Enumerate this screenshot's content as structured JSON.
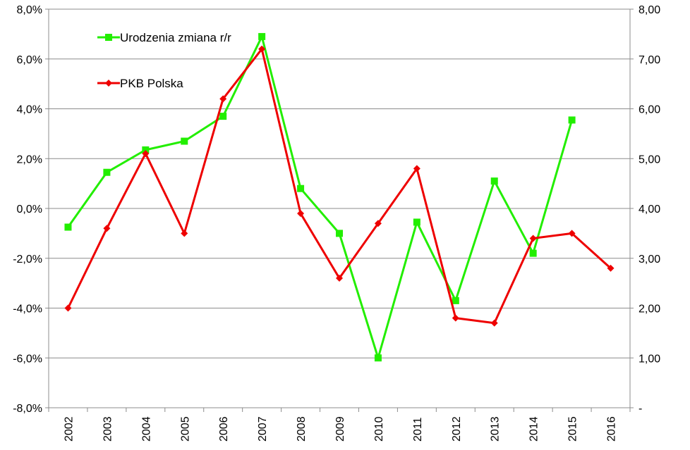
{
  "chart_data": {
    "type": "line",
    "categories": [
      "2002",
      "2003",
      "2004",
      "2005",
      "2006",
      "2007",
      "2008",
      "2009",
      "2010",
      "2011",
      "2012",
      "2013",
      "2014",
      "2015",
      "2016"
    ],
    "y_left": {
      "ylim": [
        -8,
        8
      ],
      "ticks": [
        8,
        6,
        4,
        2,
        0,
        -2,
        -4,
        -6,
        -8
      ],
      "tick_labels": [
        "8,0%",
        "6,0%",
        "4,0%",
        "2,0%",
        "0,0%",
        "-2,0%",
        "-4,0%",
        "-6,0%",
        "-8,0%"
      ]
    },
    "y_right": {
      "ylim": [
        0,
        8
      ],
      "ticks": [
        8,
        7,
        6,
        5,
        4,
        3,
        2,
        1,
        0
      ],
      "tick_labels": [
        "8,00",
        "7,00",
        "6,00",
        "5,00",
        "4,00",
        "3,00",
        "2,00",
        "1,00",
        "-"
      ]
    },
    "grid": true,
    "legend_position": "top-left",
    "series": [
      {
        "name": "Urodzenia zmiana r/r",
        "axis": "left",
        "color": "#22ee00",
        "marker": "square",
        "values": [
          -0.75,
          1.45,
          2.35,
          2.7,
          3.7,
          6.9,
          0.8,
          -1.0,
          -6.0,
          -0.55,
          -3.7,
          1.1,
          -1.8,
          3.55,
          null
        ]
      },
      {
        "name": "PKB Polska",
        "axis": "right",
        "color": "#ee0000",
        "marker": "diamond",
        "values": [
          2.0,
          3.6,
          5.1,
          3.5,
          6.2,
          7.2,
          3.9,
          2.6,
          3.7,
          4.8,
          1.8,
          1.7,
          3.4,
          3.5,
          2.8
        ]
      }
    ]
  }
}
